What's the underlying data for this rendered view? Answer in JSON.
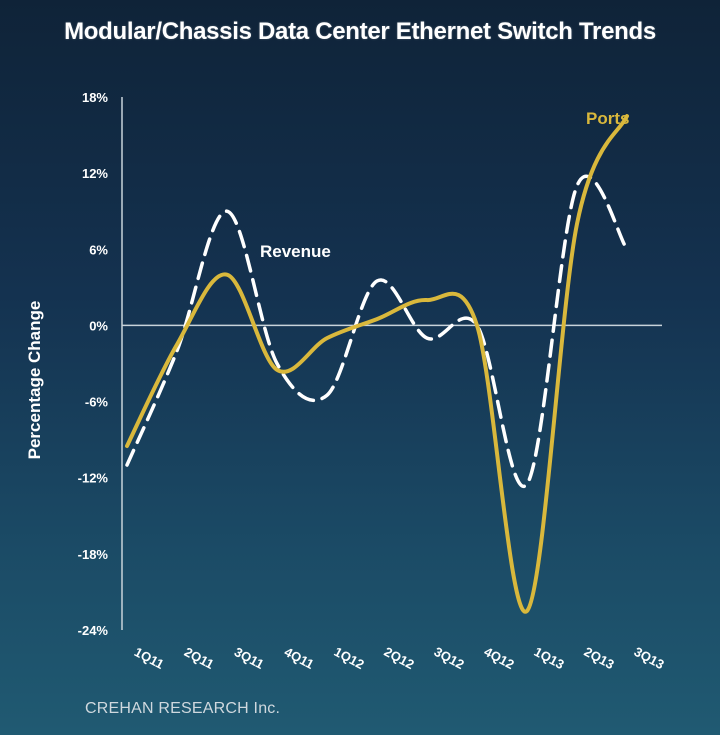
{
  "chart_data": {
    "type": "line",
    "title": "Modular/Chassis Data Center Ethernet Switch Trends",
    "ylabel": "Percentage Change",
    "xlabel": "",
    "categories": [
      "1Q11",
      "2Q11",
      "3Q11",
      "4Q11",
      "1Q12",
      "2Q12",
      "3Q12",
      "4Q12",
      "1Q13",
      "2Q13",
      "3Q13"
    ],
    "y_ticks": [
      "18%",
      "12%",
      "6%",
      "0%",
      "-6%",
      "-12%",
      "-18%",
      "-24%"
    ],
    "ylim": [
      -24,
      18
    ],
    "grid": false,
    "series": [
      {
        "name": "Ports",
        "color": "#d9b83c",
        "style": "solid",
        "values": [
          -9.5,
          -1.5,
          4,
          -3.5,
          -1,
          0.5,
          2,
          0,
          -22.5,
          8,
          16.5
        ]
      },
      {
        "name": "Revenue",
        "color": "#ffffff",
        "style": "dashed",
        "values": [
          -11,
          -2,
          9,
          -3,
          -5.5,
          3.5,
          -1,
          0,
          -12.5,
          11,
          6
        ]
      }
    ]
  },
  "source": "CREHAN RESEARCH Inc."
}
